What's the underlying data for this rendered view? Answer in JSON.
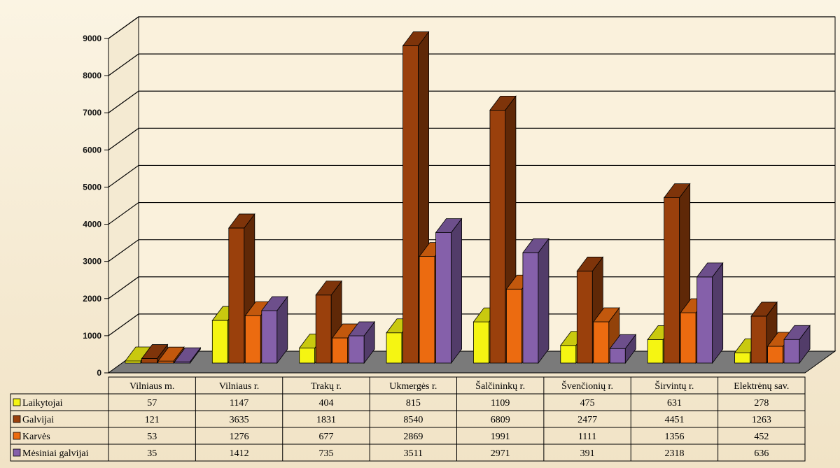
{
  "chart_data": {
    "type": "bar",
    "title": "",
    "xlabel": "",
    "ylabel": "",
    "ylim": [
      0,
      9000
    ],
    "yticks": [
      0,
      1000,
      2000,
      3000,
      4000,
      5000,
      6000,
      7000,
      8000,
      9000
    ],
    "grid": true,
    "legend": "table-bottom",
    "three_d": true,
    "categories": [
      "Vilniaus m.",
      "Vilniaus r.",
      "Trakų r.",
      "Ukmergės r.",
      "Šalčininkų r.",
      "Švenčionių r.",
      "Širvintų r.",
      "Elektrėnų sav."
    ],
    "series": [
      {
        "name": "Laikytojai",
        "color": "#f5f512",
        "values": [
          57,
          1147,
          404,
          815,
          1109,
          475,
          631,
          278
        ]
      },
      {
        "name": "Galvijai",
        "color": "#9a400c",
        "values": [
          121,
          3635,
          1831,
          8540,
          6809,
          2477,
          4451,
          1263
        ]
      },
      {
        "name": "Karvės",
        "color": "#ec6b10",
        "values": [
          53,
          1276,
          677,
          2869,
          1991,
          1111,
          1356,
          452
        ]
      },
      {
        "name": "Mėsiniai galvijai",
        "color": "#8560aa",
        "values": [
          35,
          1412,
          735,
          3511,
          2971,
          391,
          2318,
          636
        ]
      }
    ]
  }
}
